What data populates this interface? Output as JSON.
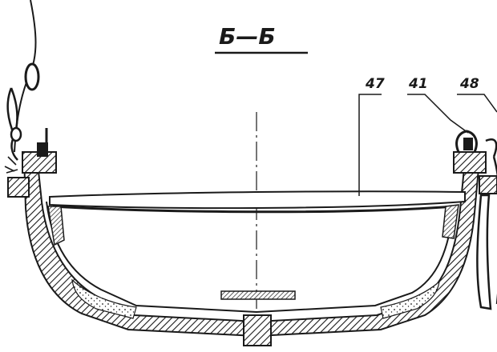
{
  "section": {
    "title": "Б—Б"
  },
  "callouts": [
    {
      "id": "47",
      "text": "47"
    },
    {
      "id": "41",
      "text": "41"
    },
    {
      "id": "48",
      "text": "48"
    }
  ],
  "colors": {
    "ink": "#1a1a1a",
    "paper": "#ffffff"
  }
}
